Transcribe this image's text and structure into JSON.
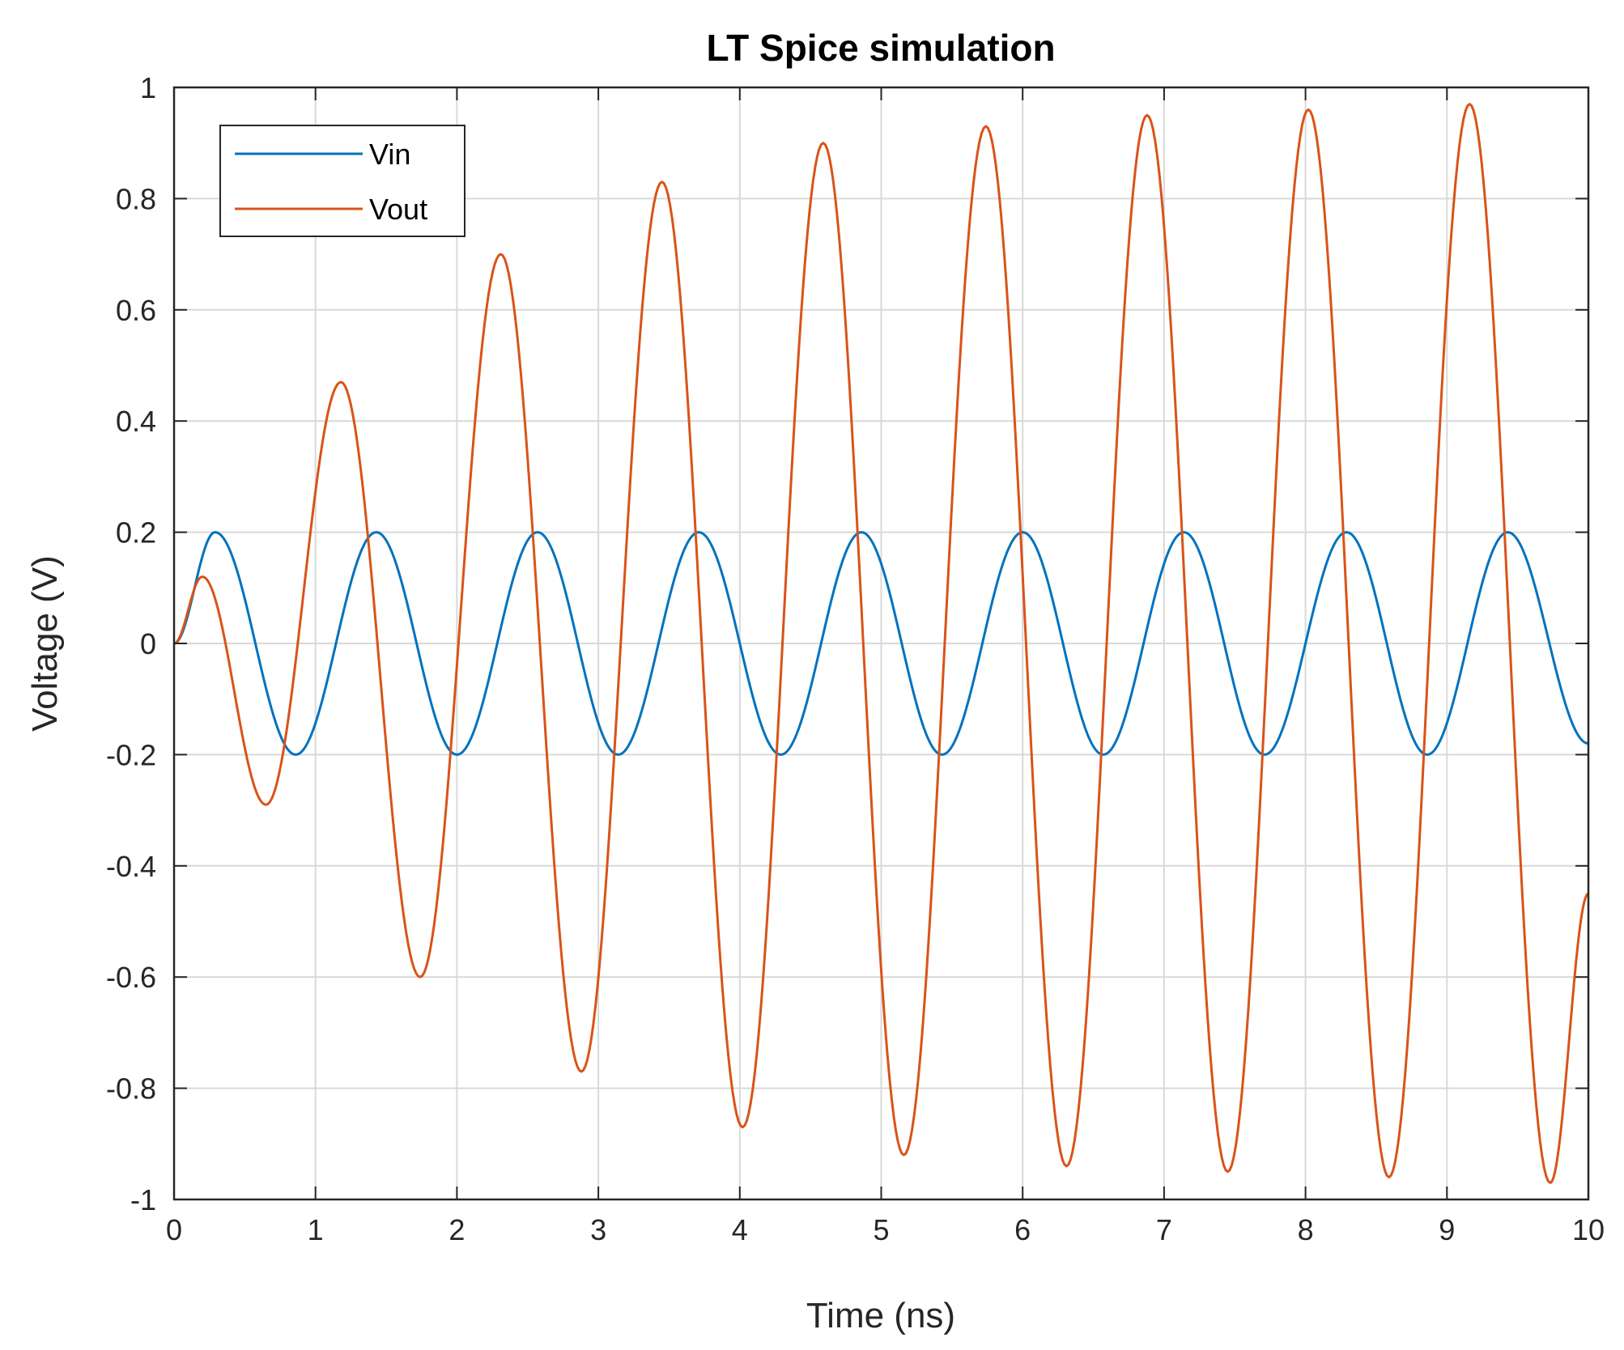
{
  "chart_data": {
    "type": "line",
    "title": "LT Spice simulation",
    "xlabel": "Time (ns)",
    "ylabel": "Voltage (V)",
    "xlim": [
      0,
      10
    ],
    "ylim": [
      -1,
      1
    ],
    "xticks": [
      0,
      1,
      2,
      3,
      4,
      5,
      6,
      7,
      8,
      9,
      10
    ],
    "xtick_labels": [
      "0",
      "1",
      "2",
      "3",
      "4",
      "5",
      "6",
      "7",
      "8",
      "9",
      "10"
    ],
    "yticks": [
      1,
      0.8,
      0.6,
      0.4,
      0.2,
      0,
      -0.2,
      -0.4,
      -0.6,
      -0.8,
      -1
    ],
    "ytick_labels": [
      "1",
      "0.8",
      "0.6",
      "0.4",
      "0.2",
      "0",
      "-0.2",
      "-0.4",
      "-0.6",
      "-0.8",
      "-1"
    ],
    "grid": true,
    "legend_position": "top-left",
    "series": [
      {
        "name": "Vin",
        "color": "#0072BD",
        "x": [
          0,
          0.29,
          0.86,
          1.43,
          2.0,
          2.57,
          3.14,
          3.71,
          4.29,
          4.86,
          5.43,
          6.0,
          6.57,
          7.14,
          7.71,
          8.29,
          8.86,
          9.43,
          10.0
        ],
        "y": [
          0,
          0.2,
          -0.2,
          0.2,
          -0.2,
          0.2,
          -0.2,
          0.2,
          -0.2,
          0.2,
          -0.2,
          0.2,
          -0.2,
          0.2,
          -0.2,
          0.2,
          -0.2,
          0.2,
          -0.18
        ]
      },
      {
        "name": "Vout",
        "color": "#D95319",
        "x": [
          0,
          0.2,
          0.65,
          1.18,
          1.74,
          2.31,
          2.88,
          3.45,
          4.02,
          4.59,
          5.16,
          5.74,
          6.31,
          6.88,
          7.45,
          8.02,
          8.59,
          9.16,
          9.73,
          10.0
        ],
        "y": [
          0,
          0.12,
          -0.29,
          0.47,
          -0.6,
          0.7,
          -0.77,
          0.83,
          -0.87,
          0.9,
          -0.92,
          0.93,
          -0.94,
          0.95,
          -0.95,
          0.96,
          -0.96,
          0.97,
          -0.97,
          -0.45
        ]
      }
    ]
  }
}
